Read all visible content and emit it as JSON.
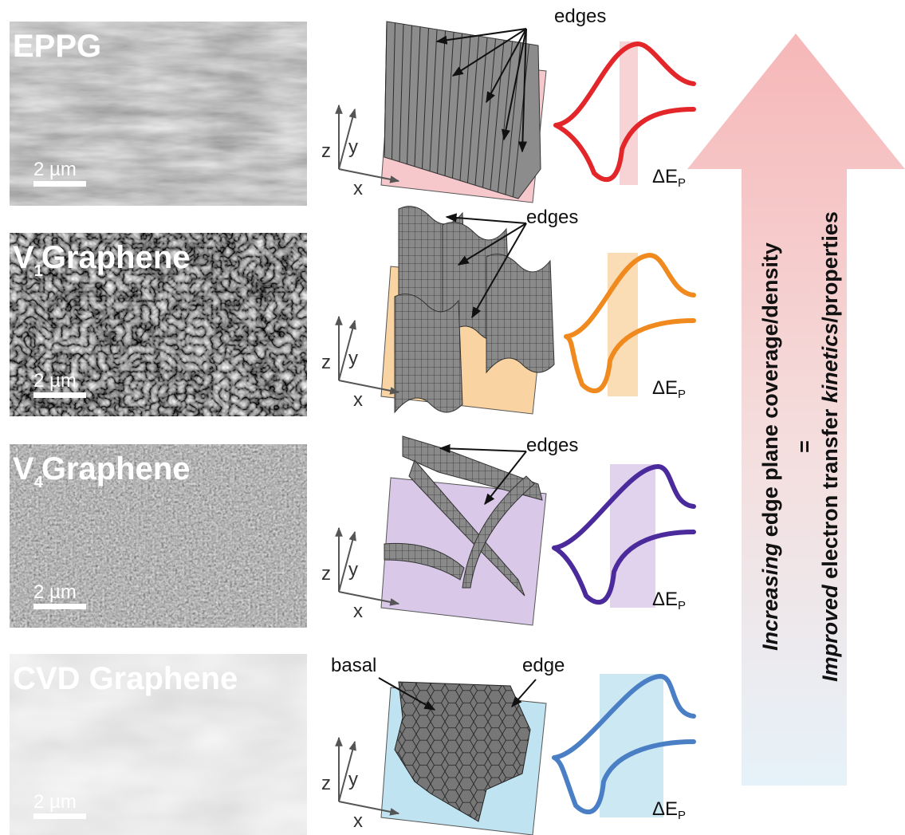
{
  "panels": [
    {
      "label": "EPPG",
      "scale_bar": "2 µm",
      "callouts": [
        "edges"
      ],
      "axes": {
        "z": "z",
        "y": "y",
        "x": "x"
      },
      "delta": "ΔE",
      "delta_sub": "P",
      "color": "#e3262a",
      "base_color": "#f6c8cc"
    },
    {
      "label": "V",
      "label_sub": "1",
      "label_rest": "Graphene",
      "scale_bar": "2 µm",
      "callouts": [
        "edges"
      ],
      "axes": {
        "z": "z",
        "y": "y",
        "x": "x"
      },
      "delta": "ΔE",
      "delta_sub": "P",
      "color": "#f08a1e",
      "base_color": "#f9d3a2"
    },
    {
      "label": "V",
      "label_sub": "4",
      "label_rest": "Graphene",
      "scale_bar": "2 µm",
      "callouts": [
        "edges"
      ],
      "axes": {
        "z": "z",
        "y": "y",
        "x": "x"
      },
      "delta": "ΔE",
      "delta_sub": "P",
      "color": "#4b2a9c",
      "base_color": "#d9c8e8"
    },
    {
      "label": "CVD Graphene",
      "scale_bar": "2 µm",
      "callouts": [
        "basal",
        "edge"
      ],
      "axes": {
        "z": "z",
        "y": "y",
        "x": "x"
      },
      "delta": "ΔE",
      "delta_sub": "P",
      "color": "#4a7fc6",
      "base_color": "#bfe3f0"
    }
  ],
  "arrow": {
    "line1": [
      "Increasing",
      " edge plane coverage/density"
    ],
    "equals": "=",
    "line2": [
      "Improved",
      " electron transfer ",
      "kinetics",
      "/properties"
    ]
  }
}
